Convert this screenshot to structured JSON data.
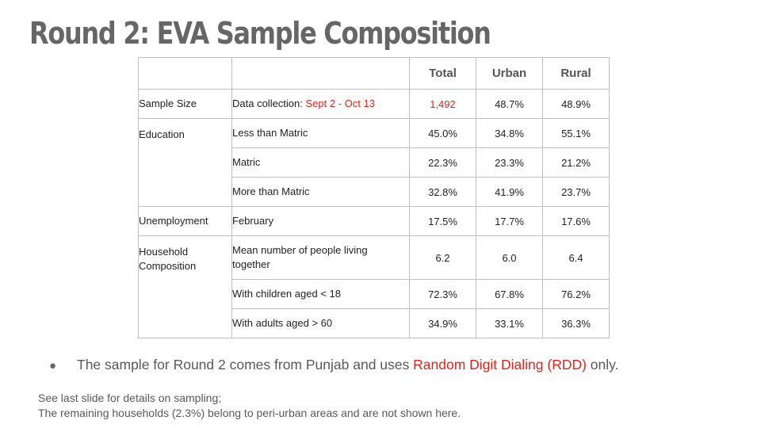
{
  "title": "Round 2: EVA Sample Composition",
  "table": {
    "headers": [
      "",
      "",
      "Total",
      "Urban",
      "Rural"
    ],
    "sample_size": {
      "label": "Sample Size",
      "desc_prefix": "Data collection: ",
      "desc_dates": "Sept 2 - Oct 13",
      "total": "1,492",
      "urban": "48.7%",
      "rural": "48.9%"
    },
    "education": {
      "label": "Education",
      "rows": [
        {
          "desc": "Less than Matric",
          "total": "45.0%",
          "urban": "34.8%",
          "rural": "55.1%"
        },
        {
          "desc": "Matric",
          "total": "22.3%",
          "urban": "23.3%",
          "rural": "21.2%"
        },
        {
          "desc": "More than Matric",
          "total": "32.8%",
          "urban": "41.9%",
          "rural": "23.7%"
        }
      ]
    },
    "unemployment": {
      "label": "Unemployment",
      "desc": "February",
      "total": "17.5%",
      "urban": "17.7%",
      "rural": "17.6%"
    },
    "household": {
      "label": "Household Composition",
      "rows": [
        {
          "desc": "Mean number of people living together",
          "total": "6.2",
          "urban": "6.0",
          "rural": "6.4"
        },
        {
          "desc": "With children aged < 18",
          "total": "72.3%",
          "urban": "67.8%",
          "rural": "76.2%"
        },
        {
          "desc": "With adults aged > 60",
          "total": "34.9%",
          "urban": "33.1%",
          "rural": "36.3%"
        }
      ]
    }
  },
  "bullet": {
    "prefix": "The sample for Round 2 comes from Punjab and uses ",
    "highlight": "Random Digit Dialing (RDD)",
    "suffix": " only."
  },
  "notes": [
    "See last slide for details on sampling;",
    "The remaining households (2.3%) belong to peri-urban areas and are not shown here."
  ],
  "colors": {
    "highlight": "#e8201a",
    "title": "#666666",
    "border": "#bfbfbf"
  }
}
